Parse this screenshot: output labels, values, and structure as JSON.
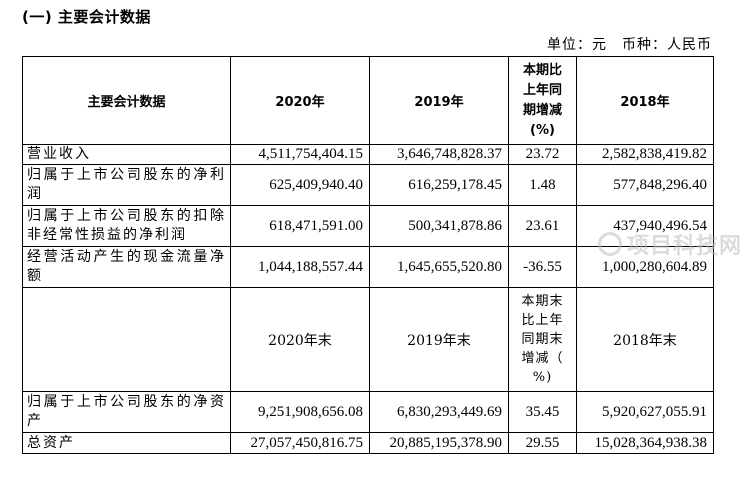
{
  "section_title": "(一) 主要会计数据",
  "unit_line": "单位：元　币种：人民币",
  "headers": {
    "item": "主要会计数据",
    "y2020": "2020年",
    "y2019": "2019年",
    "change": [
      "本期比",
      "上年同",
      "期增减",
      "(%)"
    ],
    "y2018": "2018年"
  },
  "rows": [
    {
      "label": "营业收入",
      "y2020": "4,511,754,404.15",
      "y2019": "3,646,748,828.37",
      "change": "23.72",
      "y2018": "2,582,838,419.82"
    },
    {
      "label": "归属于上市公司股东的净利润",
      "y2020": "625,409,940.40",
      "y2019": "616,259,178.45",
      "change": "1.48",
      "y2018": "577,848,296.40"
    },
    {
      "label": "归属于上市公司股东的扣除非经常性损益的净利润",
      "y2020": "618,471,591.00",
      "y2019": "500,341,878.86",
      "change": "23.61",
      "y2018": "437,940,496.54"
    },
    {
      "label": "经营活动产生的现金流量净额",
      "y2020": "1,044,188,557.44",
      "y2019": "1,645,655,520.80",
      "change": "-36.55",
      "y2018": "1,000,280,604.89"
    }
  ],
  "subheaders": {
    "y2020": "2020年末",
    "y2019": "2019年末",
    "change": [
      "本期末",
      "比上年",
      "同期末",
      "增减（",
      "%)"
    ],
    "y2018": "2018年末"
  },
  "rows2": [
    {
      "label": "归属于上市公司股东的净资产",
      "y2020": "9,251,908,656.08",
      "y2019": "6,830,293,449.69",
      "change": "35.45",
      "y2018": "5,920,627,055.91"
    },
    {
      "label": "总资产",
      "y2020": "27,057,450,816.75",
      "y2019": "20,885,195,378.90",
      "change": "29.55",
      "y2018": "15,028,364,938.38"
    }
  ],
  "watermark": {
    "text": "项目科技网",
    "icon": "circle-logo-icon"
  }
}
